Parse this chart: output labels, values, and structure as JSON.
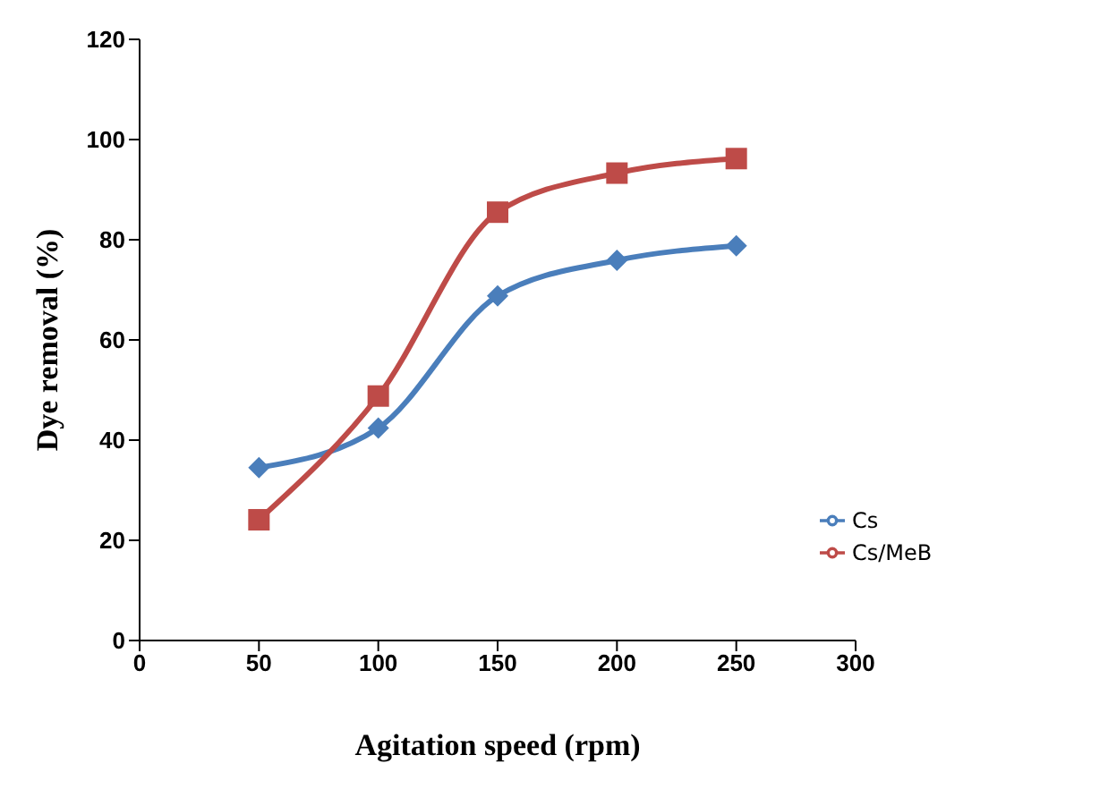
{
  "chart_data": {
    "type": "line",
    "xlabel": "Agitation speed (rpm)",
    "ylabel": "Dye removal (%)",
    "x": [
      50,
      100,
      150,
      200,
      250
    ],
    "series": [
      {
        "name": "Cs",
        "color": "#4a7ebb",
        "marker": "diamond",
        "values": [
          34.5,
          42.4,
          68.8,
          75.9,
          78.8
        ]
      },
      {
        "name": "Cs/MeB",
        "color": "#be4b48",
        "marker": "square",
        "values": [
          24.1,
          48.8,
          85.5,
          93.3,
          96.2
        ]
      }
    ],
    "xlim": [
      0,
      300
    ],
    "xticks": [
      0,
      50,
      100,
      150,
      200,
      250,
      300
    ],
    "ylim": [
      0,
      120
    ],
    "yticks": [
      0,
      20,
      40,
      60,
      80,
      100,
      120
    ],
    "grid": false,
    "legend": "bottom right"
  }
}
